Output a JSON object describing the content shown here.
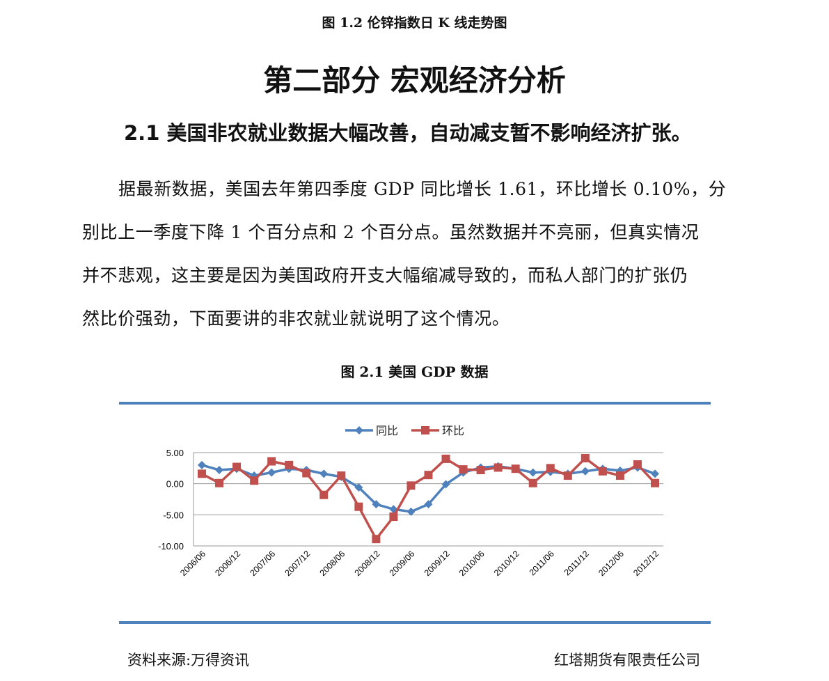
{
  "prev_caption": "图 1.2  伦锌指数日 K 线走势图",
  "section_title": "第二部分  宏观经济分析",
  "subsection_title": "2.1  美国非农就业数据大幅改善，自动减支暂不影响经济扩张。",
  "paragraph_lines": [
    "据最新数据，美国去年第四季度 GDP 同比增长 1.61，环比增长 0.10%，分",
    "别比上一季度下降 1 个百分点和 2 个百分点。虽然数据并不亮丽，但真实情况",
    "并不悲观，这主要是因为美国政府开支大幅缩减导致的，而私人部门的扩张仍",
    "然比价强劲，下面要讲的非农就业就说明了这个情况。"
  ],
  "figure_caption": "图 2.1  美国 GDP 数据",
  "footer": {
    "source": "资料来源:万得资讯",
    "company": "红塔期货有限责任公司"
  },
  "chart_data": {
    "type": "line",
    "legend_position": "top-center",
    "grid": true,
    "ylim": [
      -10,
      5
    ],
    "yticks": [
      "5.00",
      "0.00",
      "-5.00",
      "-10.00"
    ],
    "xtick_labels": [
      "2006/06",
      "2006/12",
      "2007/06",
      "2007/12",
      "2008/06",
      "2008/12",
      "2009/06",
      "2009/12",
      "2010/06",
      "2010/12",
      "2011/06",
      "2011/12",
      "2012/06",
      "2012/12"
    ],
    "series": [
      {
        "name": "同比",
        "color": "#4F81BD",
        "marker": "diamond",
        "values": [
          3.0,
          2.2,
          2.4,
          1.3,
          1.8,
          2.4,
          2.2,
          1.6,
          1.1,
          -0.6,
          -3.3,
          -4.1,
          -4.5,
          -3.3,
          -0.1,
          1.8,
          2.6,
          2.8,
          2.4,
          1.8,
          1.9,
          1.6,
          2.0,
          2.4,
          2.1,
          2.6,
          1.6
        ]
      },
      {
        "name": "环比",
        "color": "#C0504D",
        "marker": "square",
        "values": [
          1.6,
          0.1,
          2.7,
          0.5,
          3.6,
          3.0,
          1.7,
          -1.8,
          1.3,
          -3.7,
          -8.9,
          -5.3,
          -0.3,
          1.4,
          4.0,
          2.3,
          2.2,
          2.6,
          2.4,
          0.1,
          2.5,
          1.3,
          4.1,
          2.0,
          1.3,
          3.1,
          0.1
        ]
      }
    ]
  }
}
